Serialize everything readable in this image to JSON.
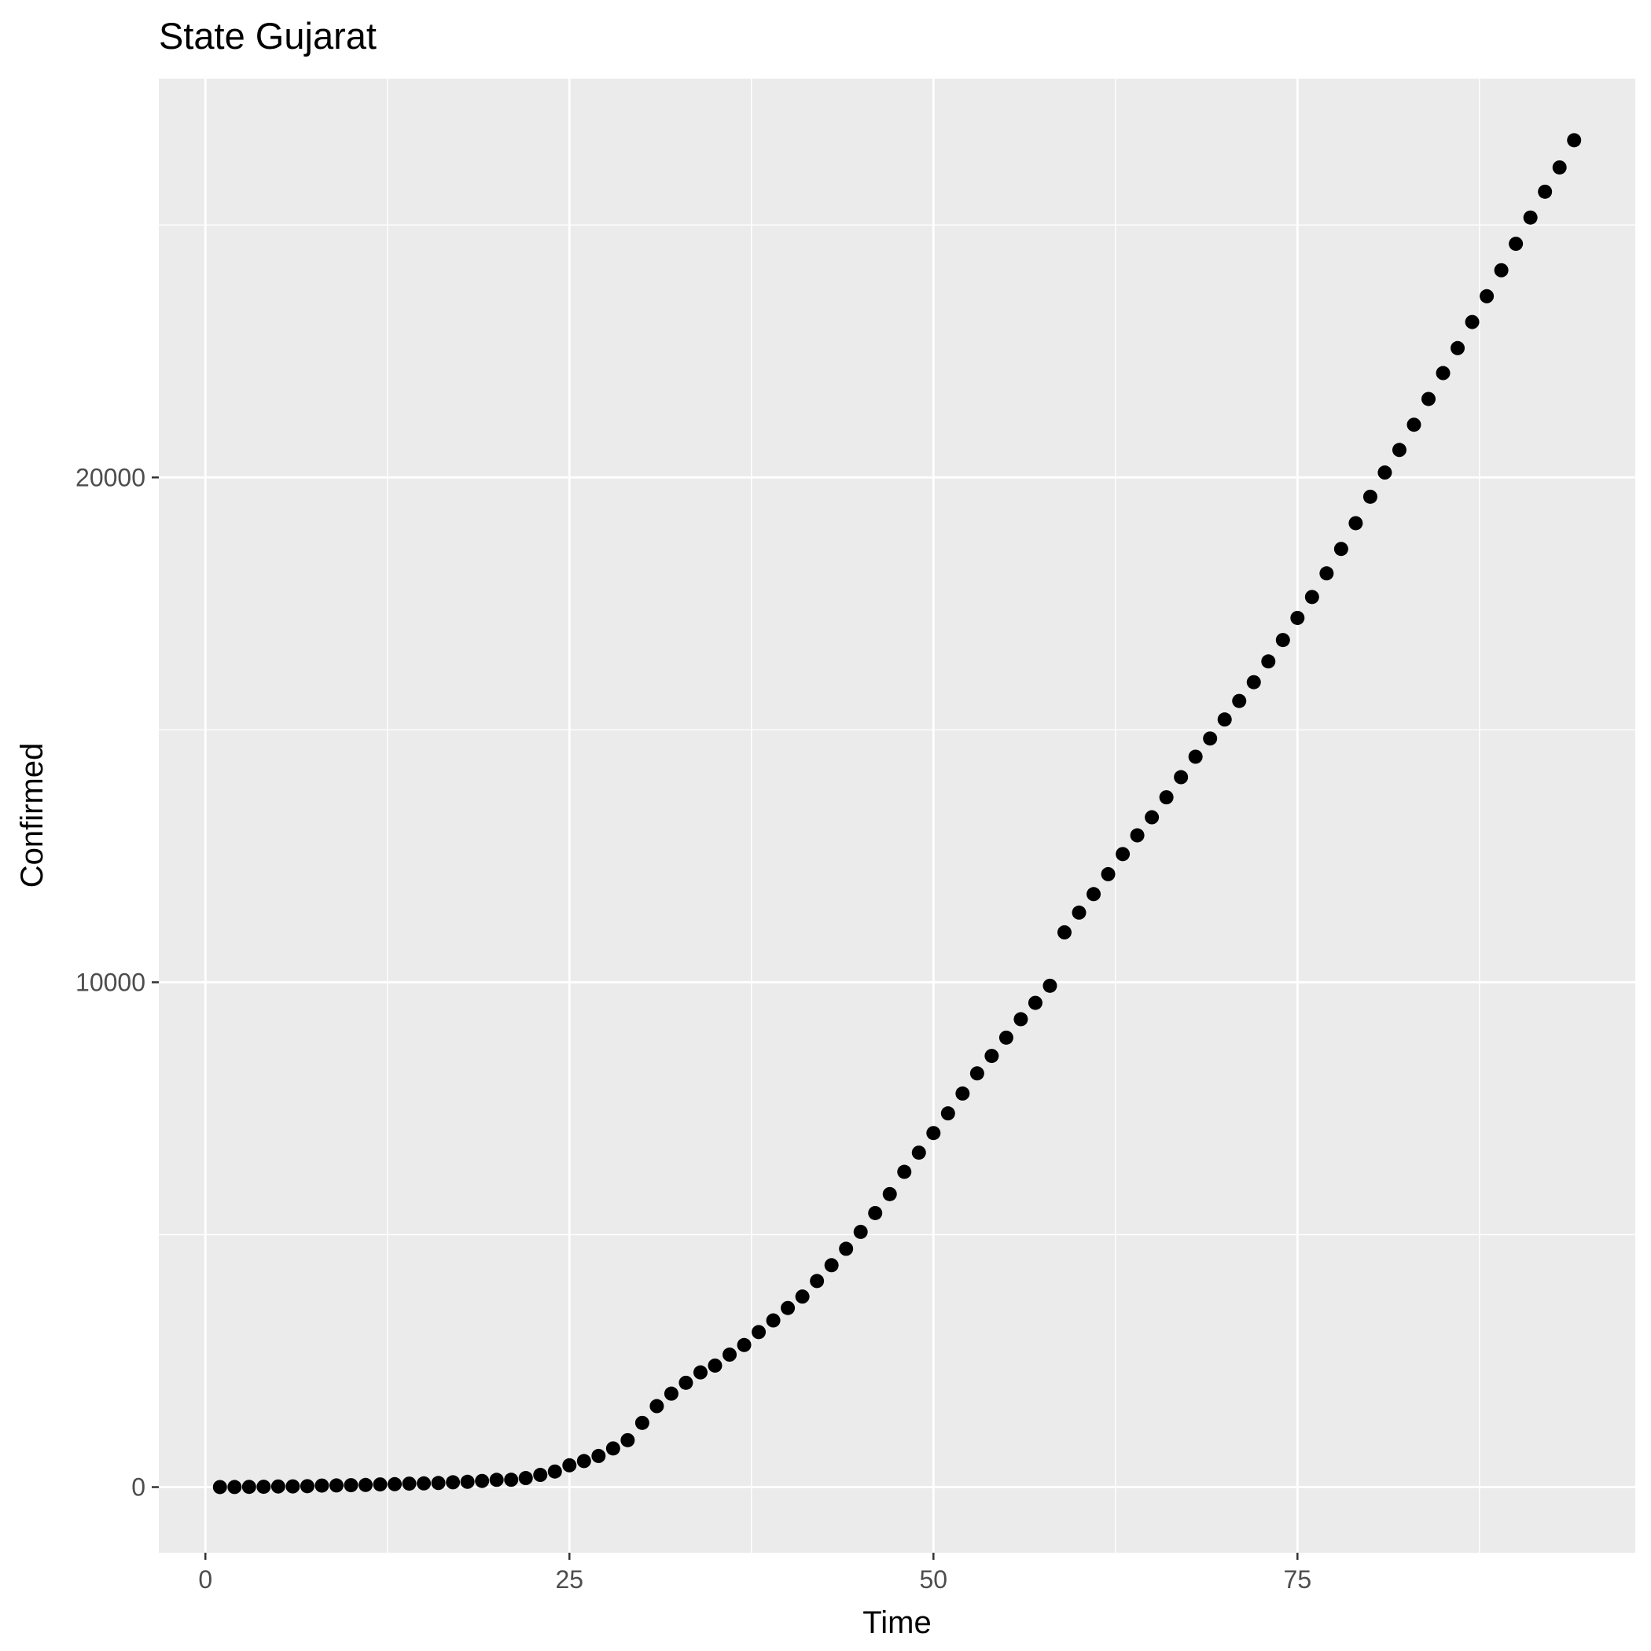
{
  "chart_data": {
    "type": "scatter",
    "title": "State Gujarat",
    "xlabel": "Time",
    "ylabel": "Confirmed",
    "xlim": [
      -3.2,
      98.2
    ],
    "ylim": [
      -1300,
      27900
    ],
    "x_ticks": [
      0,
      25,
      50,
      75
    ],
    "y_ticks": [
      0,
      10000,
      20000
    ],
    "x_tick_labels": [
      "0",
      "25",
      "50",
      "75"
    ],
    "y_tick_labels": [
      "0",
      "10000",
      "20000"
    ],
    "grid": true,
    "legend": "none",
    "colors": {
      "panel": "#ebebeb",
      "grid": "#ffffff",
      "point": "#000000",
      "tick_text": "#4d4d4d",
      "tick_mark": "#333333"
    },
    "x": [
      1,
      2,
      3,
      4,
      5,
      6,
      7,
      8,
      9,
      10,
      11,
      12,
      13,
      14,
      15,
      16,
      17,
      18,
      19,
      20,
      21,
      22,
      23,
      24,
      25,
      26,
      27,
      28,
      29,
      30,
      31,
      32,
      33,
      34,
      35,
      36,
      37,
      38,
      39,
      40,
      41,
      42,
      43,
      44,
      45,
      46,
      47,
      48,
      49,
      50,
      51,
      52,
      53,
      54,
      55,
      56,
      57,
      58,
      59,
      60,
      61,
      62,
      63,
      64,
      65,
      66,
      67,
      68,
      69,
      70,
      71,
      72,
      73,
      74,
      75,
      76,
      77,
      78,
      79,
      80,
      81,
      82,
      83,
      84,
      85,
      86,
      87,
      88,
      89,
      90,
      91,
      92,
      93,
      94
    ],
    "y": [
      1,
      2,
      5,
      7,
      13,
      14,
      18,
      30,
      33,
      38,
      43,
      53,
      58,
      69,
      74,
      82,
      95,
      105,
      122,
      144,
      146,
      179,
      241,
      308,
      432,
      516,
      617,
      766,
      929,
      1272,
      1604,
      1851,
      2066,
      2272,
      2407,
      2624,
      2815,
      3071,
      3301,
      3548,
      3774,
      4082,
      4395,
      4721,
      5055,
      5428,
      5804,
      6245,
      6625,
      7013,
      7403,
      7796,
      8195,
      8541,
      8903,
      9268,
      9592,
      9931,
      10989,
      11380,
      11746,
      12141,
      12539,
      12910,
      13268,
      13664,
      14063,
      14468,
      14829,
      15205,
      15572,
      15944,
      16356,
      16779,
      17217,
      17632,
      18100,
      18584,
      19094,
      19617,
      20097,
      20545,
      21044,
      21554,
      22067,
      22562,
      23079,
      23590,
      24104,
      24628,
      25148,
      25660,
      26141,
      26680
    ]
  }
}
